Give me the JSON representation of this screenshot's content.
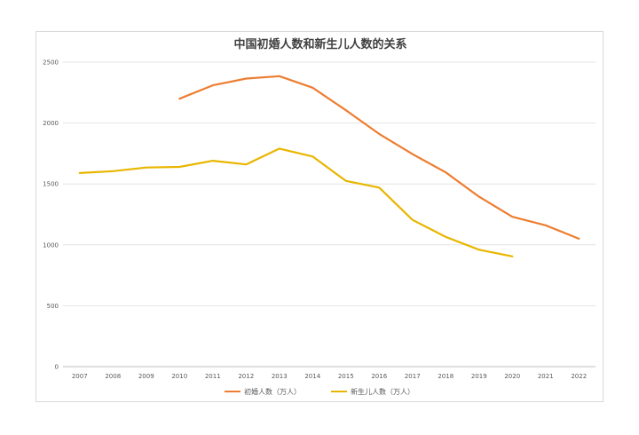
{
  "chart_data": {
    "type": "line",
    "title": "中国初婚人数和新生儿人数的关系",
    "xlabel": "",
    "ylabel": "",
    "categories": [
      "2007",
      "2008",
      "2009",
      "2010",
      "2011",
      "2012",
      "2013",
      "2014",
      "2015",
      "2016",
      "2017",
      "2018",
      "2019",
      "2020",
      "2021",
      "2022"
    ],
    "ylim": [
      0,
      2500
    ],
    "yticks": [
      0,
      500,
      1000,
      1500,
      2000,
      2500
    ],
    "grid": true,
    "legend_position": "bottom",
    "series": [
      {
        "name": "初婚人数（万人）",
        "color": "#ED7D31",
        "values": [
          null,
          null,
          null,
          2200,
          2310,
          2365,
          2385,
          2290,
          2105,
          1910,
          1745,
          1595,
          1395,
          1230,
          1160,
          1050
        ]
      },
      {
        "name": "新生儿人数（万人）",
        "color": "#E8B600",
        "values": [
          1590,
          1605,
          1635,
          1640,
          1690,
          1660,
          1790,
          1725,
          1525,
          1470,
          1205,
          1065,
          960,
          905,
          null,
          null
        ]
      }
    ]
  }
}
